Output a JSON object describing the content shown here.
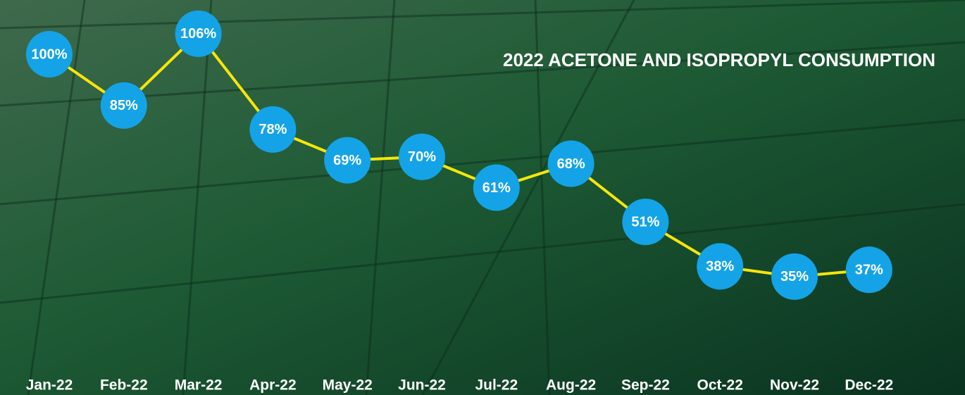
{
  "chart_data": {
    "type": "line",
    "title": "2022 ACETONE AND ISOPROPYL CONSUMPTION",
    "categories": [
      "Jan-22",
      "Feb-22",
      "Mar-22",
      "Apr-22",
      "May-22",
      "Jun-22",
      "Jul-22",
      "Aug-22",
      "Sep-22",
      "Oct-22",
      "Nov-22",
      "Dec-22"
    ],
    "values": [
      100,
      85,
      106,
      78,
      69,
      70,
      61,
      68,
      51,
      38,
      35,
      37
    ],
    "value_labels": [
      "100%",
      "85%",
      "106%",
      "78%",
      "69%",
      "70%",
      "61%",
      "68%",
      "51%",
      "38%",
      "35%",
      "37%"
    ],
    "color": "#f5e60a",
    "marker_color": "#14a3e6"
  }
}
